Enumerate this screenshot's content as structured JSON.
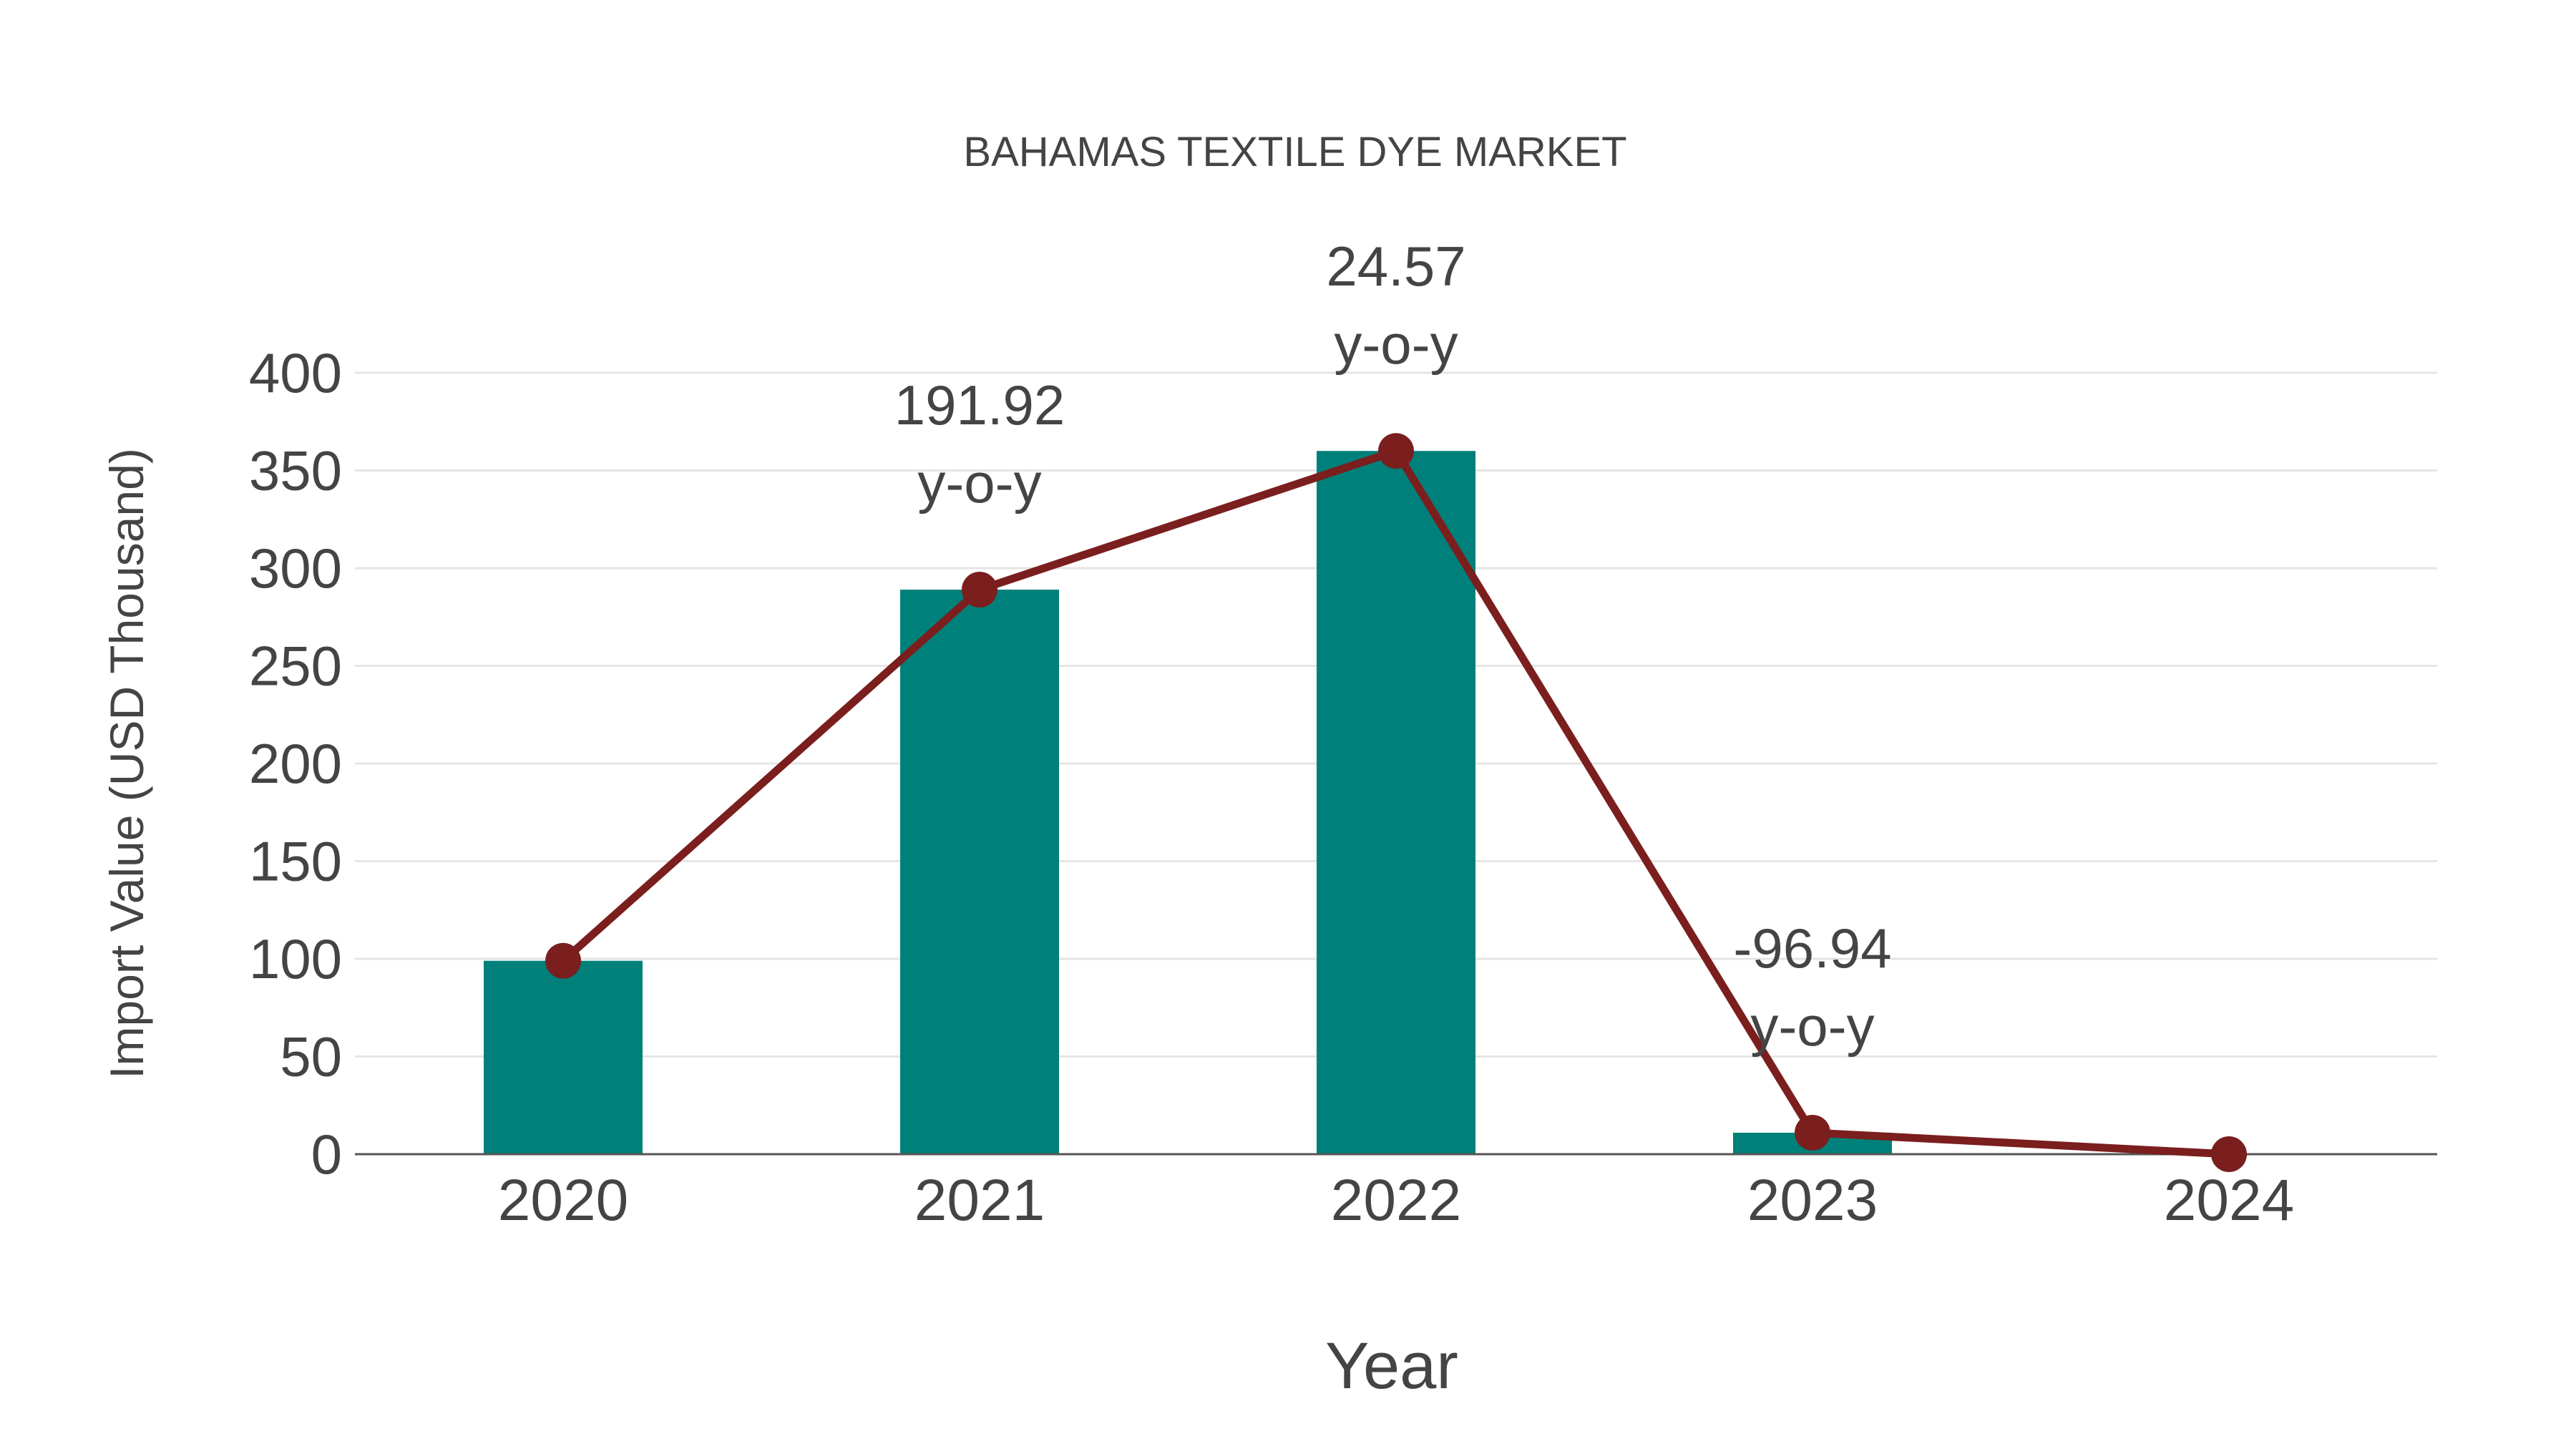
{
  "chart_data": {
    "type": "bar",
    "title": "BAHAMAS TEXTILE DYE MARKET",
    "xlabel": "Year",
    "ylabel": "Import Value (USD Thousand)",
    "categories": [
      "2020",
      "2021",
      "2022",
      "2023",
      "2024"
    ],
    "ylim": [
      0,
      400
    ],
    "yticks": [
      0,
      50,
      100,
      150,
      200,
      250,
      300,
      350,
      400
    ],
    "grid": true,
    "series": [
      {
        "name": "Import Value",
        "type": "bar",
        "color": "#00807A",
        "values": [
          99,
          289,
          360,
          11,
          0
        ]
      },
      {
        "name": "Trend",
        "type": "line",
        "color": "#7B1E1E",
        "values": [
          99,
          289,
          360,
          11,
          0
        ]
      }
    ],
    "annotations": [
      {
        "category": "2021",
        "value": "191.92",
        "suffix": "y-o-y"
      },
      {
        "category": "2022",
        "value": "24.57",
        "suffix": "y-o-y"
      },
      {
        "category": "2023",
        "value": "-96.94",
        "suffix": "y-o-y"
      }
    ]
  }
}
